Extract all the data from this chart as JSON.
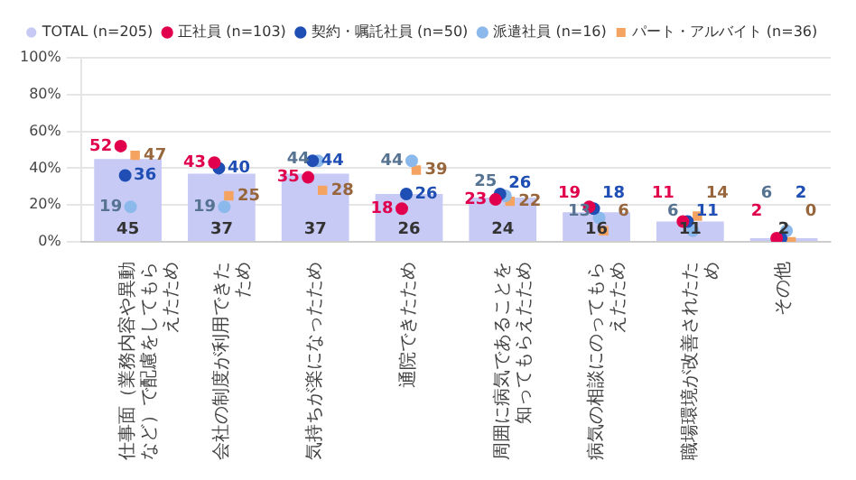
{
  "chart_data": {
    "type": "bar",
    "categories": [
      "仕事面（業務内容や異動など）で配慮をしてもらえたため",
      "会社の制度が利用できたため",
      "気持ちが楽になったため",
      "通院できたため",
      "周囲に病気であることを知ってもらえたため",
      "病気の相談にのってもらえたため",
      "職場環境が改善されたため",
      "その他"
    ],
    "series": [
      {
        "name": "TOTAL (n=205)",
        "color": "#c8caf6",
        "values": [
          45,
          37,
          37,
          26,
          24,
          16,
          11,
          2
        ]
      },
      {
        "name": "正社員 (n=103)",
        "type": "scatter",
        "marker": "circle",
        "color": "#e0004d",
        "values": [
          52,
          43,
          35,
          18,
          23,
          19,
          11,
          2
        ]
      },
      {
        "name": "契約・嘱託社員 (n=50)",
        "type": "scatter",
        "marker": "circle",
        "color": "#1f4eb4",
        "values": [
          36,
          40,
          44,
          26,
          26,
          18,
          11,
          2
        ]
      },
      {
        "name": "派遣社員 (n=16)",
        "type": "scatter",
        "marker": "circle",
        "color": "#8cb9ec",
        "values": [
          19,
          19,
          44,
          44,
          25,
          13,
          6,
          6
        ]
      },
      {
        "name": "パート・アルバイト (n=36)",
        "type": "scatter",
        "marker": "square",
        "color": "#f4a460",
        "values": [
          47,
          25,
          28,
          39,
          22,
          6,
          14,
          0
        ]
      }
    ],
    "ylim": [
      0,
      100
    ],
    "yticks": [
      {
        "value": 0,
        "label": "0%"
      },
      {
        "value": 20,
        "label": "20%"
      },
      {
        "value": 40,
        "label": "40%"
      },
      {
        "value": 60,
        "label": "60%"
      },
      {
        "value": 80,
        "label": "80%"
      },
      {
        "value": 100,
        "label": "100%"
      }
    ],
    "grid": "y",
    "legend": "top",
    "data_labels": true
  }
}
